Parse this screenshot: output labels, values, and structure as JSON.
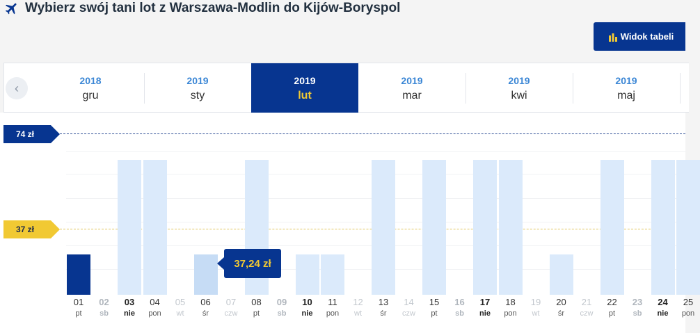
{
  "header": {
    "title": "Wybierz swój tani lot z Warszawa-Modlin do Kijów-Boryspol"
  },
  "table_view_button": {
    "label": "Widok tabeli"
  },
  "months": [
    {
      "year": "2018",
      "month": "gru",
      "active": false
    },
    {
      "year": "2019",
      "month": "sty",
      "active": false
    },
    {
      "year": "2019",
      "month": "lut",
      "active": true
    },
    {
      "year": "2019",
      "month": "mar",
      "active": false
    },
    {
      "year": "2019",
      "month": "kwi",
      "active": false
    },
    {
      "year": "2019",
      "month": "maj",
      "active": false
    }
  ],
  "price_scale": {
    "max": "74 zł",
    "min": "37 zł"
  },
  "tooltip": {
    "price": "37,24 zł"
  },
  "days": [
    {
      "num": "01",
      "dow": "pt",
      "type": "normal",
      "bar": "low",
      "state": "selected"
    },
    {
      "num": "02",
      "dow": "sb",
      "type": "weekend",
      "bar": "none"
    },
    {
      "num": "03",
      "dow": "nie",
      "type": "sunday",
      "bar": "high"
    },
    {
      "num": "04",
      "dow": "pon",
      "type": "normal",
      "bar": "high"
    },
    {
      "num": "05",
      "dow": "wt",
      "type": "faded",
      "bar": "none"
    },
    {
      "num": "06",
      "dow": "śr",
      "type": "normal",
      "bar": "low",
      "state": "hover"
    },
    {
      "num": "07",
      "dow": "czw",
      "type": "faded",
      "bar": "none"
    },
    {
      "num": "08",
      "dow": "pt",
      "type": "normal",
      "bar": "high"
    },
    {
      "num": "09",
      "dow": "sb",
      "type": "weekend",
      "bar": "none"
    },
    {
      "num": "10",
      "dow": "nie",
      "type": "sunday",
      "bar": "low"
    },
    {
      "num": "11",
      "dow": "pon",
      "type": "normal",
      "bar": "low"
    },
    {
      "num": "12",
      "dow": "wt",
      "type": "faded",
      "bar": "none"
    },
    {
      "num": "13",
      "dow": "śr",
      "type": "normal",
      "bar": "high"
    },
    {
      "num": "14",
      "dow": "czw",
      "type": "faded",
      "bar": "none"
    },
    {
      "num": "15",
      "dow": "pt",
      "type": "normal",
      "bar": "high"
    },
    {
      "num": "16",
      "dow": "sb",
      "type": "weekend",
      "bar": "none"
    },
    {
      "num": "17",
      "dow": "nie",
      "type": "sunday",
      "bar": "high"
    },
    {
      "num": "18",
      "dow": "pon",
      "type": "normal",
      "bar": "high"
    },
    {
      "num": "19",
      "dow": "wt",
      "type": "faded",
      "bar": "none"
    },
    {
      "num": "20",
      "dow": "śr",
      "type": "normal",
      "bar": "low"
    },
    {
      "num": "21",
      "dow": "czw",
      "type": "faded",
      "bar": "none"
    },
    {
      "num": "22",
      "dow": "pt",
      "type": "normal",
      "bar": "high"
    },
    {
      "num": "23",
      "dow": "sb",
      "type": "weekend",
      "bar": "none"
    },
    {
      "num": "24",
      "dow": "nie",
      "type": "sunday",
      "bar": "high"
    },
    {
      "num": "25",
      "dow": "pon",
      "type": "normal",
      "bar": "high"
    }
  ],
  "colors": {
    "brand_blue": "#073590",
    "accent_yellow": "#f1c933",
    "bar_light": "#dbeafb",
    "link_blue": "#3a86d5"
  },
  "icons": {
    "header": "airplane-icon",
    "button": "bar-chart-icon",
    "nav": "chevron-left-icon"
  }
}
